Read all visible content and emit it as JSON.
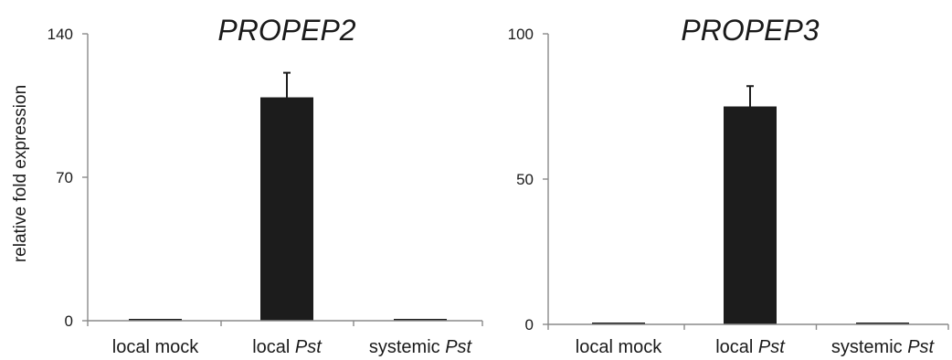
{
  "chart_data": [
    {
      "type": "bar",
      "title": "PROPEP2",
      "ylabel": "relative fold expression",
      "ylim": [
        0,
        140
      ],
      "yticks": [
        "0",
        "70",
        "140"
      ],
      "categories": [
        {
          "text": "local mock",
          "italic": ""
        },
        {
          "text": "local ",
          "italic": "Pst"
        },
        {
          "text": "systemic ",
          "italic": "Pst"
        }
      ],
      "values": [
        0.5,
        109,
        0.5
      ],
      "errors": [
        0,
        12,
        0
      ],
      "bar_color": "#1c1c1c"
    },
    {
      "type": "bar",
      "title": "PROPEP3",
      "ylabel": "",
      "ylim": [
        0,
        100
      ],
      "yticks": [
        "0",
        "50",
        "100"
      ],
      "categories": [
        {
          "text": "local mock",
          "italic": ""
        },
        {
          "text": "local ",
          "italic": "Pst"
        },
        {
          "text": "systemic ",
          "italic": "Pst"
        }
      ],
      "values": [
        0.5,
        75,
        0.3
      ],
      "errors": [
        0,
        7,
        0
      ],
      "bar_color": "#1c1c1c"
    }
  ]
}
